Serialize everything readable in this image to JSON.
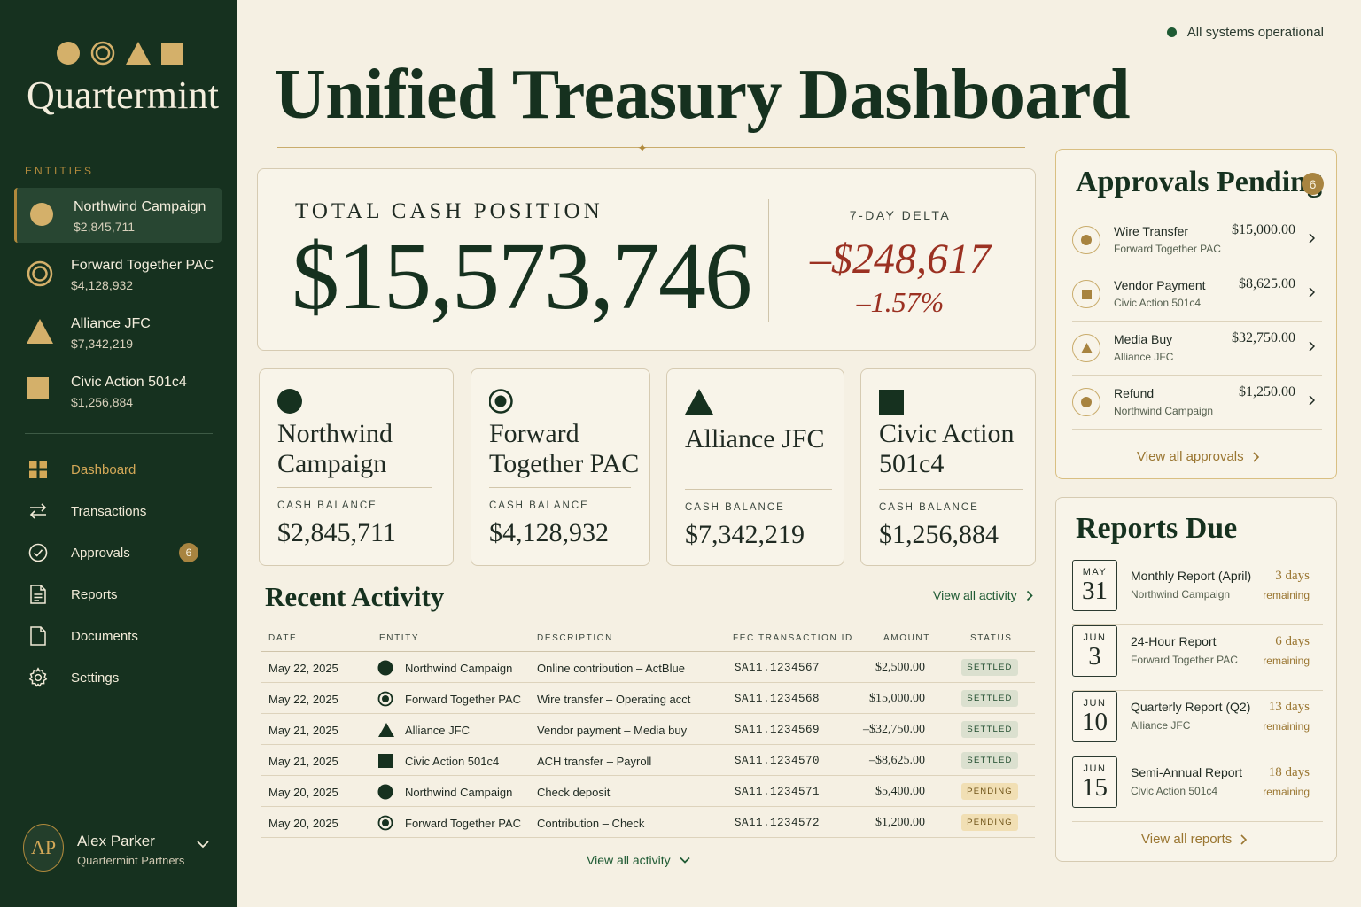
{
  "brand": {
    "name": "Quartermint"
  },
  "status": {
    "text": "All systems operational"
  },
  "sidebar": {
    "entities_label": "ENTITIES",
    "entities": [
      {
        "name": "Northwind Campaign",
        "amount": "$2,845,711",
        "icon": "circle-icon"
      },
      {
        "name": "Forward Together PAC",
        "amount": "$4,128,932",
        "icon": "ring-icon"
      },
      {
        "name": "Alliance JFC",
        "amount": "$7,342,219",
        "icon": "triangle-icon"
      },
      {
        "name": "Civic Action 501c4",
        "amount": "$1,256,884",
        "icon": "square-icon"
      }
    ],
    "nav": [
      {
        "label": "Dashboard",
        "icon": "dashboard-icon"
      },
      {
        "label": "Transactions",
        "icon": "transfer-icon"
      },
      {
        "label": "Approvals",
        "icon": "check-circle-icon",
        "badge": "6"
      },
      {
        "label": "Reports",
        "icon": "report-icon"
      },
      {
        "label": "Documents",
        "icon": "document-icon"
      },
      {
        "label": "Settings",
        "icon": "gear-icon"
      }
    ],
    "user": {
      "initials": "AP",
      "name": "Alex Parker",
      "org": "Quartermint Partners"
    }
  },
  "page": {
    "title": "Unified Treasury Dashboard"
  },
  "cash": {
    "label": "TOTAL CASH POSITION",
    "value": "$15,573,746",
    "delta_label": "7-DAY DELTA",
    "delta_value": "–$248,617",
    "delta_pct": "–1.57%"
  },
  "entity_cards": [
    {
      "name": "Northwind Campaign",
      "balance_label": "CASH BALANCE",
      "balance": "$2,845,711"
    },
    {
      "name": "Forward Together PAC",
      "balance_label": "CASH BALANCE",
      "balance": "$4,128,932"
    },
    {
      "name": "Alliance JFC",
      "balance_label": "CASH BALANCE",
      "balance": "$7,342,219"
    },
    {
      "name": "Civic Action 501c4",
      "balance_label": "CASH BALANCE",
      "balance": "$1,256,884"
    }
  ],
  "activity": {
    "title": "Recent Activity",
    "view_all": "View all activity",
    "columns": [
      "DATE",
      "ENTITY",
      "DESCRIPTION",
      "FEC TRANSACTION ID",
      "AMOUNT",
      "STATUS"
    ],
    "rows": [
      {
        "date": "May 22, 2025",
        "entity": "Northwind Campaign",
        "description": "Online contribution – ActBlue",
        "fec_id": "SA11.1234567",
        "amount": "$2,500.00",
        "status": "SETTLED"
      },
      {
        "date": "May 22, 2025",
        "entity": "Forward Together PAC",
        "description": "Wire transfer – Operating acct",
        "fec_id": "SA11.1234568",
        "amount": "$15,000.00",
        "status": "SETTLED"
      },
      {
        "date": "May 21, 2025",
        "entity": "Alliance JFC",
        "description": "Vendor payment – Media buy",
        "fec_id": "SA11.1234569",
        "amount": "–$32,750.00",
        "status": "SETTLED"
      },
      {
        "date": "May 21, 2025",
        "entity": "Civic Action 501c4",
        "description": "ACH transfer – Payroll",
        "fec_id": "SA11.1234570",
        "amount": "–$8,625.00",
        "status": "SETTLED"
      },
      {
        "date": "May 20, 2025",
        "entity": "Northwind Campaign",
        "description": "Check deposit",
        "fec_id": "SA11.1234571",
        "amount": "$5,400.00",
        "status": "PENDING"
      },
      {
        "date": "May 20, 2025",
        "entity": "Forward Together PAC",
        "description": "Contribution – Check",
        "fec_id": "SA11.1234572",
        "amount": "$1,200.00",
        "status": "PENDING"
      }
    ],
    "bottom_link": "View all activity"
  },
  "approvals": {
    "title": "Approvals Pending",
    "count": "6",
    "items": [
      {
        "type": "Wire Transfer",
        "entity": "Forward Together PAC",
        "amount": "$15,000.00"
      },
      {
        "type": "Vendor Payment",
        "entity": "Civic Action 501c4",
        "amount": "$8,625.00"
      },
      {
        "type": "Media Buy",
        "entity": "Alliance JFC",
        "amount": "$32,750.00"
      },
      {
        "type": "Refund",
        "entity": "Northwind Campaign",
        "amount": "$1,250.00"
      }
    ],
    "view_all": "View all approvals"
  },
  "reports": {
    "title": "Reports Due",
    "items": [
      {
        "month": "MAY",
        "day": "31",
        "name": "Monthly Report (April)",
        "entity": "Northwind Campaign",
        "days": "3 days",
        "remaining": "remaining"
      },
      {
        "month": "JUN",
        "day": "3",
        "name": "24-Hour Report",
        "entity": "Forward Together PAC",
        "days": "6 days",
        "remaining": "remaining"
      },
      {
        "month": "JUN",
        "day": "10",
        "name": "Quarterly Report (Q2)",
        "entity": "Alliance JFC",
        "days": "13 days",
        "remaining": "remaining"
      },
      {
        "month": "JUN",
        "day": "15",
        "name": "Semi-Annual Report",
        "entity": "Civic Action 501c4",
        "days": "18 days",
        "remaining": "remaining"
      }
    ],
    "view_all": "View all reports"
  },
  "colors": {
    "sidebar": "#16311f",
    "accent_gold": "#b0893c",
    "negative": "#9b3122",
    "page": "#f5f0e3"
  }
}
